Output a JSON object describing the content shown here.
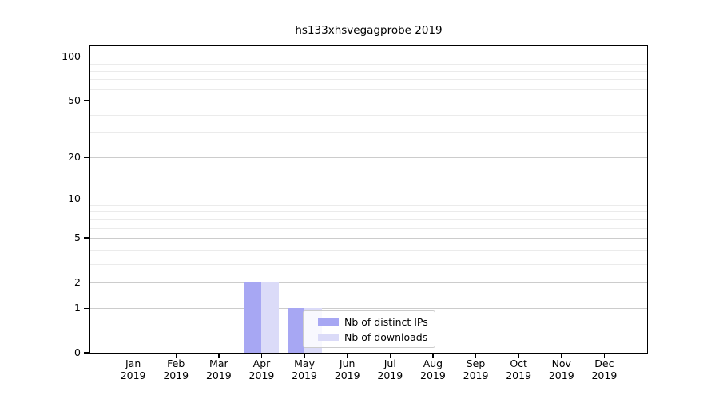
{
  "chart_data": {
    "type": "bar",
    "title": "hs133xhsvegagprobe 2019",
    "categories": [
      {
        "month": "Jan",
        "year": "2019"
      },
      {
        "month": "Feb",
        "year": "2019"
      },
      {
        "month": "Mar",
        "year": "2019"
      },
      {
        "month": "Apr",
        "year": "2019"
      },
      {
        "month": "May",
        "year": "2019"
      },
      {
        "month": "Jun",
        "year": "2019"
      },
      {
        "month": "Jul",
        "year": "2019"
      },
      {
        "month": "Aug",
        "year": "2019"
      },
      {
        "month": "Sep",
        "year": "2019"
      },
      {
        "month": "Oct",
        "year": "2019"
      },
      {
        "month": "Nov",
        "year": "2019"
      },
      {
        "month": "Dec",
        "year": "2019"
      }
    ],
    "series": [
      {
        "name": "Nb of distinct IPs",
        "color": "#a7a7f3",
        "values": [
          0,
          0,
          0,
          2,
          1,
          0,
          0,
          0,
          0,
          0,
          0,
          0
        ]
      },
      {
        "name": "Nb of downloads",
        "color": "#dbdbf8",
        "values": [
          0,
          0,
          0,
          2,
          1,
          0,
          0,
          0,
          0,
          0,
          0,
          0
        ]
      }
    ],
    "xlabel": "",
    "ylabel": "",
    "yscale": "log1p",
    "ylim": [
      0,
      118
    ],
    "y_ticks": {
      "major": [
        0,
        1,
        2,
        5,
        10,
        20,
        50,
        100
      ],
      "minor": [
        3,
        4,
        6,
        7,
        8,
        9,
        30,
        40,
        60,
        70,
        80,
        90
      ]
    },
    "grid": "horizontal, major and minor",
    "legend_position": "inside plot, lower middle"
  }
}
